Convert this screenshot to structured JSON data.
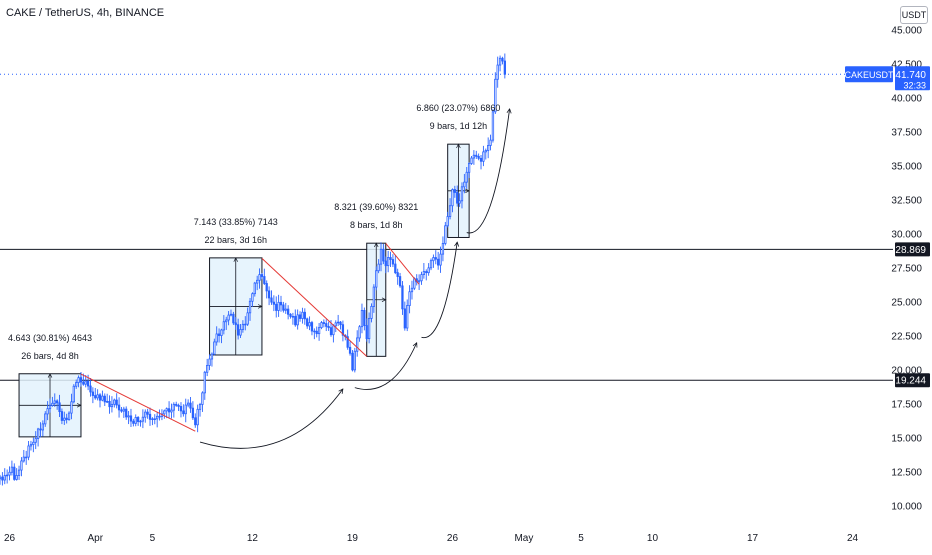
{
  "header": {
    "title": "CAKE / TetherUS, 4h, BINANCE",
    "currency_button": "USDT"
  },
  "price_tag": {
    "symbol": "CAKEUSDT",
    "price": "41.740",
    "countdown": "32:33",
    "color": "#2962ff"
  },
  "colors": {
    "candle": "#2962ff",
    "box_fill": "#e3f2fd",
    "box_border": "#131722",
    "trend_line": "#e53935",
    "grid_label": "#131722"
  },
  "chart_data": {
    "type": "candlestick",
    "y_axis": {
      "ticks": [
        "10.000",
        "12.500",
        "15.000",
        "17.500",
        "20.000",
        "22.500",
        "25.000",
        "27.500",
        "30.000",
        "32.500",
        "35.000",
        "37.500",
        "40.000",
        "42.500",
        "45.000"
      ],
      "range": [
        8.6,
        47.2
      ],
      "position": "right"
    },
    "x_axis": {
      "ticks": [
        {
          "label": "26",
          "bar": 0
        },
        {
          "label": "Apr",
          "bar": 36
        },
        {
          "label": "5",
          "bar": 60
        },
        {
          "label": "12",
          "bar": 102
        },
        {
          "label": "19",
          "bar": 144
        },
        {
          "label": "26",
          "bar": 186
        },
        {
          "label": "May",
          "bar": 216
        },
        {
          "label": "5",
          "bar": 240
        },
        {
          "label": "10",
          "bar": 270
        },
        {
          "label": "17",
          "bar": 312
        },
        {
          "label": "24",
          "bar": 354
        }
      ],
      "bar_range": [
        -4,
        371
      ]
    },
    "horizontal_levels": [
      {
        "price": 28.869,
        "label": "28.869"
      },
      {
        "price": 19.244,
        "label": "19.244"
      }
    ],
    "last_price_level": 41.74,
    "measures": [
      {
        "from_bar": 4,
        "to_bar": 30,
        "low": 15.08,
        "high": 19.72,
        "text1": "4.643 (30.81%) 4643",
        "text2": "26 bars, 4d 8h"
      },
      {
        "from_bar": 84,
        "to_bar": 106,
        "low": 21.1,
        "high": 28.24,
        "text1": "7.143 (33.85%) 7143",
        "text2": "22 bars, 3d 16h"
      },
      {
        "from_bar": 150,
        "to_bar": 158,
        "low": 21.0,
        "high": 29.32,
        "text1": "8.321 (39.60%) 8321",
        "text2": "8 bars, 1d 8h"
      },
      {
        "from_bar": 184,
        "to_bar": 193,
        "low": 29.74,
        "high": 36.6,
        "text1": "6.860 (23.07%) 6860",
        "text2": "9 bars, 1d 12h"
      }
    ],
    "trend_lines": [
      {
        "from_bar": 30,
        "from_price": 19.7,
        "to_bar": 78,
        "to_price": 15.5
      },
      {
        "from_bar": 106,
        "from_price": 28.2,
        "to_bar": 150,
        "to_price": 21.0
      },
      {
        "from_bar": 158,
        "from_price": 29.3,
        "to_bar": 172,
        "to_price": 26.3
      }
    ],
    "arrows": [
      {
        "from_bar": 80,
        "from_price": 14.7,
        "to_bar": 140,
        "to_price": 18.6
      },
      {
        "from_bar": 145,
        "from_price": 18.7,
        "to_bar": 171,
        "to_price": 22.0
      },
      {
        "from_bar": 173,
        "from_price": 22.4,
        "to_bar": 188,
        "to_price": 29.4
      },
      {
        "from_bar": 192,
        "from_price": 30.1,
        "to_bar": 210,
        "to_price": 39.2
      }
    ],
    "path": [
      [
        -4,
        12.0
      ],
      [
        0,
        12.8
      ],
      [
        3,
        12.0
      ],
      [
        6,
        13.5
      ],
      [
        9,
        14.6
      ],
      [
        12,
        15.4
      ],
      [
        15,
        16.6
      ],
      [
        18,
        17.3
      ],
      [
        20,
        17.9
      ],
      [
        22,
        16.2
      ],
      [
        25,
        16.8
      ],
      [
        27,
        18.6
      ],
      [
        30,
        19.4
      ],
      [
        33,
        18.8
      ],
      [
        36,
        18.1
      ],
      [
        39,
        17.8
      ],
      [
        42,
        17.3
      ],
      [
        45,
        17.6
      ],
      [
        48,
        16.9
      ],
      [
        51,
        16.4
      ],
      [
        54,
        16.2
      ],
      [
        57,
        16.7
      ],
      [
        60,
        16.3
      ],
      [
        63,
        16.8
      ],
      [
        66,
        17.1
      ],
      [
        69,
        17.4
      ],
      [
        72,
        16.9
      ],
      [
        75,
        17.3
      ],
      [
        78,
        16.1
      ],
      [
        80,
        17.6
      ],
      [
        82,
        19.6
      ],
      [
        84,
        20.6
      ],
      [
        87,
        22.4
      ],
      [
        90,
        23.5
      ],
      [
        93,
        24.1
      ],
      [
        96,
        22.8
      ],
      [
        99,
        23.3
      ],
      [
        102,
        25.7
      ],
      [
        105,
        27.1
      ],
      [
        108,
        25.8
      ],
      [
        111,
        24.6
      ],
      [
        114,
        24.9
      ],
      [
        117,
        23.9
      ],
      [
        120,
        23.6
      ],
      [
        123,
        24.1
      ],
      [
        126,
        23.2
      ],
      [
        129,
        22.9
      ],
      [
        132,
        23.3
      ],
      [
        135,
        22.6
      ],
      [
        138,
        23.8
      ],
      [
        141,
        22.2
      ],
      [
        144,
        20.3
      ],
      [
        146,
        22.1
      ],
      [
        148,
        24.6
      ],
      [
        150,
        22.3
      ],
      [
        152,
        24.9
      ],
      [
        154,
        27.6
      ],
      [
        156,
        28.6
      ],
      [
        158,
        27.8
      ],
      [
        160,
        28.4
      ],
      [
        162,
        27.2
      ],
      [
        164,
        26.2
      ],
      [
        166,
        23.4
      ],
      [
        168,
        25.6
      ],
      [
        170,
        26.9
      ],
      [
        172,
        26.6
      ],
      [
        174,
        27.1
      ],
      [
        176,
        27.4
      ],
      [
        178,
        28.3
      ],
      [
        180,
        28.0
      ],
      [
        182,
        29.6
      ],
      [
        184,
        31.3
      ],
      [
        186,
        33.4
      ],
      [
        188,
        32.2
      ],
      [
        190,
        33.3
      ],
      [
        192,
        34.6
      ],
      [
        194,
        35.8
      ],
      [
        196,
        35.6
      ],
      [
        198,
        35.4
      ],
      [
        200,
        36.1
      ],
      [
        202,
        37.2
      ],
      [
        204,
        41.4
      ],
      [
        206,
        43.2
      ],
      [
        208,
        41.7
      ]
    ]
  }
}
